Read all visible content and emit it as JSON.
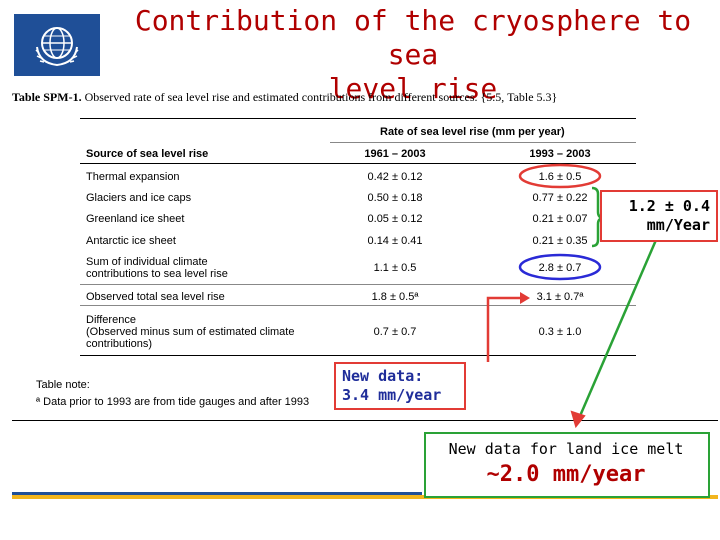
{
  "slide": {
    "title_line1": "Contribution of the cryosphere to sea",
    "title_line2": "level rise"
  },
  "table": {
    "caption_label": "Table SPM-1.",
    "caption_text": " Observed rate of sea level rise and estimated contributions from different sources.  {5.5, Table 5.3}",
    "group_header": "Rate of sea level rise (mm per year)",
    "col_source": "Source of sea level rise",
    "col_period1": "1961 – 2003",
    "col_period2": "1993 – 2003",
    "rows": [
      {
        "source": "Thermal expansion",
        "v1": "0.42 ± 0.12",
        "v2": "1.6 ± 0.5"
      },
      {
        "source": "Glaciers and ice caps",
        "v1": "0.50 ± 0.18",
        "v2": "0.77 ± 0.22"
      },
      {
        "source": "Greenland ice sheet",
        "v1": "0.05 ± 0.12",
        "v2": "0.21 ± 0.07"
      },
      {
        "source": "Antarctic ice sheet",
        "v1": "0.14 ± 0.41",
        "v2": "0.21 ± 0.35"
      },
      {
        "source": "Sum of individual climate contributions to sea level rise",
        "v1": "1.1 ± 0.5",
        "v2": "2.8 ± 0.7"
      },
      {
        "source": "Observed total sea level rise",
        "v1": "1.8 ± 0.5ª",
        "v2": "3.1 ± 0.7ª"
      },
      {
        "source": "Difference (Observed minus sum of estimated climate contributions)",
        "v1": "0.7 ± 0.7",
        "v2": "0.3 ± 1.0"
      }
    ],
    "sum_line1": "Sum of individual climate",
    "sum_line2": "contributions to sea level rise",
    "diff_line1": "Difference",
    "diff_line2": "(Observed minus sum of estimated climate",
    "diff_line3": "contributions)",
    "note_label": "Table note:",
    "note_text": "ª Data prior to 1993 are from tide gauges and after 1993"
  },
  "callouts": {
    "new_data_line1": "New data:",
    "new_data_line2": "3.4 mm/year",
    "ice_rate_line1": "1.2 ± 0.4",
    "ice_rate_line2": "mm/Year",
    "land_ice_line1": "New data for land ice melt",
    "land_ice_line2": "~2.0 mm/year"
  },
  "colors": {
    "title": "#b00000",
    "red_box": "#e23b35",
    "green_box": "#2aa236",
    "blue_ellipse": "#2a2ad6",
    "red_ellipse": "#e23b35",
    "brand_blue": "#1f4f97",
    "brand_yellow": "#f2b51d"
  },
  "icons": {
    "logo": "wmo-un-emblem-icon"
  }
}
